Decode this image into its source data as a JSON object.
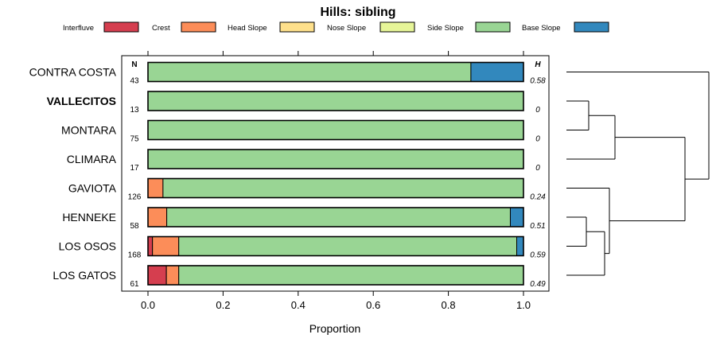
{
  "chart_data": {
    "type": "bar",
    "stacked": true,
    "orientation": "horizontal",
    "title": "Hills: sibling",
    "xlabel": "Proportion",
    "ylabel": "",
    "xlim": [
      0,
      1
    ],
    "xticks": [
      "0.0",
      "0.2",
      "0.4",
      "0.6",
      "0.8",
      "1.0"
    ],
    "tick_values": [
      0,
      0.2,
      0.4,
      0.6,
      0.8,
      1.0
    ],
    "n_header": "N",
    "h_header": "H",
    "legend": [
      {
        "name": "Interfluve",
        "color": "#d53e4f"
      },
      {
        "name": "Crest",
        "color": "#fc8d59"
      },
      {
        "name": "Head Slope",
        "color": "#fee08b"
      },
      {
        "name": "Nose Slope",
        "color": "#e6f598"
      },
      {
        "name": "Side Slope",
        "color": "#99d594"
      },
      {
        "name": "Base Slope",
        "color": "#3288bd"
      }
    ],
    "categories": [
      "CONTRA COSTA",
      "VALLECITOS",
      "MONTARA",
      "CLIMARA",
      "GAVIOTA",
      "HENNEKE",
      "LOS OSOS",
      "LOS GATOS"
    ],
    "highlight": "VALLECITOS",
    "n": [
      "43",
      "13",
      "75",
      "17",
      "126",
      "58",
      "168",
      "61"
    ],
    "h": [
      "0.58",
      "0",
      "0",
      "0",
      "0.24",
      "0.51",
      "0.59",
      "0.49"
    ],
    "series": [
      {
        "name": "Interfluve",
        "values": [
          0,
          0,
          0,
          0,
          0,
          0,
          0.012,
          0.049
        ]
      },
      {
        "name": "Crest",
        "values": [
          0,
          0,
          0,
          0,
          0.04,
          0.05,
          0.07,
          0.033
        ]
      },
      {
        "name": "Head Slope",
        "values": [
          0,
          0,
          0,
          0,
          0,
          0,
          0,
          0
        ]
      },
      {
        "name": "Nose Slope",
        "values": [
          0,
          0,
          0,
          0,
          0,
          0,
          0,
          0
        ]
      },
      {
        "name": "Side Slope",
        "values": [
          0.86,
          1.0,
          1.0,
          1.0,
          0.96,
          0.915,
          0.9,
          0.918
        ]
      },
      {
        "name": "Base Slope",
        "values": [
          0.14,
          0,
          0,
          0,
          0,
          0.035,
          0.018,
          0
        ]
      }
    ],
    "dendrogram": [
      {
        "a": "VALLECITOS",
        "b": "MONTARA"
      },
      {
        "a": "VALLECITOS+MONTARA",
        "b": "CLIMARA"
      },
      {
        "a": "HENNEKE",
        "b": "LOS OSOS"
      },
      {
        "a": "HENNEKE+LOS OSOS",
        "b": "LOS GATOS"
      },
      {
        "a": "GAVIOTA",
        "b": "HENNEKE+LOS OSOS+LOS GATOS"
      },
      {
        "a": "VALLECITOS+MONTARA+CLIMARA",
        "b": "GAVIOTA+HENNEKE+LOS OSOS+LOS GATOS"
      },
      {
        "a": "CONTRA COSTA",
        "b": "rest"
      }
    ]
  }
}
